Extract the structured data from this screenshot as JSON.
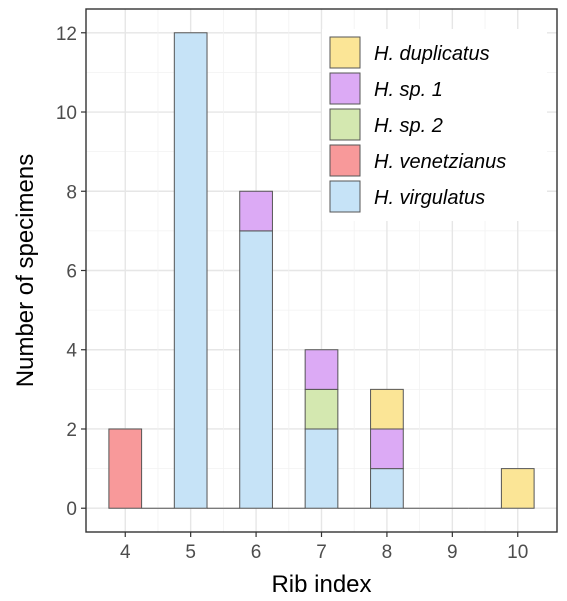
{
  "chart_data": {
    "type": "bar",
    "stacked": true,
    "xlabel": "Rib index",
    "ylabel": "Number of specimens",
    "categories": [
      "4",
      "5",
      "6",
      "7",
      "8",
      "9",
      "10"
    ],
    "ylim": [
      -0.6,
      12.6
    ],
    "yticks": [
      0,
      2,
      4,
      6,
      8,
      10,
      12
    ],
    "grid": true,
    "legend_position": "top-right",
    "series": [
      {
        "name": "H. virgulatus",
        "color": "#c6e3f7",
        "values": [
          0,
          12,
          7,
          2,
          1,
          0,
          0
        ]
      },
      {
        "name": "H. venetzianus",
        "color": "#f8999a",
        "values": [
          2,
          0,
          0,
          0,
          0,
          0,
          0
        ]
      },
      {
        "name": "H. sp. 2",
        "color": "#d4e8b0",
        "values": [
          0,
          0,
          0,
          1,
          0,
          0,
          0
        ]
      },
      {
        "name": "H. sp. 1",
        "color": "#dcaaf5",
        "values": [
          0,
          0,
          1,
          1,
          1,
          0,
          0
        ]
      },
      {
        "name": "H. duplicatus",
        "color": "#fbe596",
        "values": [
          0,
          0,
          0,
          0,
          1,
          0,
          1
        ]
      }
    ],
    "legend_order": [
      "H. duplicatus",
      "H. sp. 1",
      "H. sp. 2",
      "H. venetzianus",
      "H. virgulatus"
    ]
  }
}
